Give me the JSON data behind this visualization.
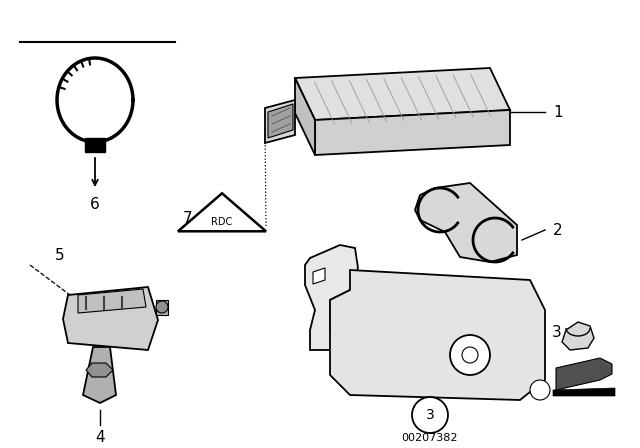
{
  "background_color": "#ffffff",
  "line_color": "#000000",
  "diagram_id": "00207382",
  "lw": 1.3,
  "fig_w": 6.4,
  "fig_h": 4.48,
  "dpi": 100
}
